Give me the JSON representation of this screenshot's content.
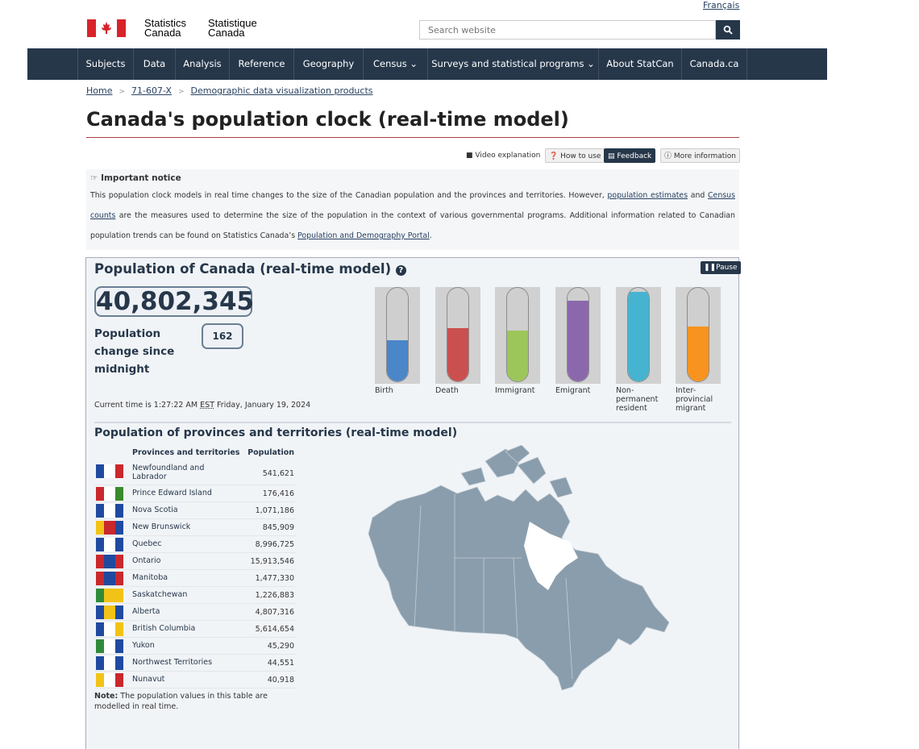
{
  "header": {
    "language_link": "Français",
    "wordmark_en": [
      "Statistics",
      "Canada"
    ],
    "wordmark_fr": [
      "Statistique",
      "Canada"
    ],
    "search_placeholder": "Search website",
    "search_icon": "search-icon"
  },
  "nav": {
    "items": [
      "Subjects",
      "Data",
      "Analysis",
      "Reference",
      "Geography",
      "Census",
      "Surveys and statistical programs",
      "About StatCan",
      "Canada.ca"
    ],
    "dropdown_items": [
      "Census",
      "Surveys and statistical programs"
    ]
  },
  "breadcrumb": [
    "Home",
    "71-607-X",
    "Demographic data visualization products"
  ],
  "page_title": "Canada's population clock (real-time model)",
  "toolbar": {
    "video": "Video explanation",
    "how_to_use": "How to use",
    "feedback": "Feedback",
    "more_info": "More information"
  },
  "notice": {
    "heading": "Important notice",
    "text_1": "This population clock models in real time changes to the size of the Canadian population and the provinces and territories. However, ",
    "link_1": "population estimates",
    "text_2": " and ",
    "link_2": "Census counts",
    "text_3": " are the measures used to determine the size of the population in the context of various governmental programs. Additional information related to Canadian population trends can be found on Statistics Canada’s ",
    "link_3": "Population and Demography Portal",
    "text_4": "."
  },
  "clock": {
    "title": "Population of Canada (real-time model)",
    "pause_label": "Pause",
    "population": "40,802,345",
    "change_label": "Population change since midnight",
    "change_value": "162",
    "current_time_prefix": "Current time is 1:27:22 AM ",
    "current_time_tz": "EST",
    "current_time_suffix": " Friday, January 19, 2024",
    "components": [
      {
        "label": "Birth",
        "level": 0.44,
        "color": "#4a86c8"
      },
      {
        "label": "Death",
        "level": 0.57,
        "color": "#c9504f"
      },
      {
        "label": "Immigrant",
        "level": 0.54,
        "color": "#9cc65a"
      },
      {
        "label": "Emigrant",
        "level": 0.86,
        "color": "#8b68ac"
      },
      {
        "label": "Non-permanent resident",
        "level": 0.96,
        "color": "#46b4d0"
      },
      {
        "label": "Inter-provincial migrant",
        "level": 0.59,
        "color": "#f7931e"
      }
    ]
  },
  "provinces": {
    "title": "Population of provinces and territories (real-time model)",
    "col_name": "Provinces and territories",
    "col_value": "Population",
    "rows": [
      {
        "name": "Newfoundland and Labrador",
        "value": "541,621"
      },
      {
        "name": "Prince Edward Island",
        "value": "176,416"
      },
      {
        "name": "Nova Scotia",
        "value": "1,071,186"
      },
      {
        "name": "New Brunswick",
        "value": "845,909"
      },
      {
        "name": "Quebec",
        "value": "8,996,725"
      },
      {
        "name": "Ontario",
        "value": "15,913,546"
      },
      {
        "name": "Manitoba",
        "value": "1,477,330"
      },
      {
        "name": "Saskatchewan",
        "value": "1,226,883"
      },
      {
        "name": "Alberta",
        "value": "4,807,316"
      },
      {
        "name": "British Columbia",
        "value": "5,614,654"
      },
      {
        "name": "Yukon",
        "value": "45,290"
      },
      {
        "name": "Northwest Territories",
        "value": "44,551"
      },
      {
        "name": "Nunavut",
        "value": "40,918"
      }
    ],
    "note_bold": "Note:",
    "note_text": " The population values in this table are modelled in real time."
  }
}
